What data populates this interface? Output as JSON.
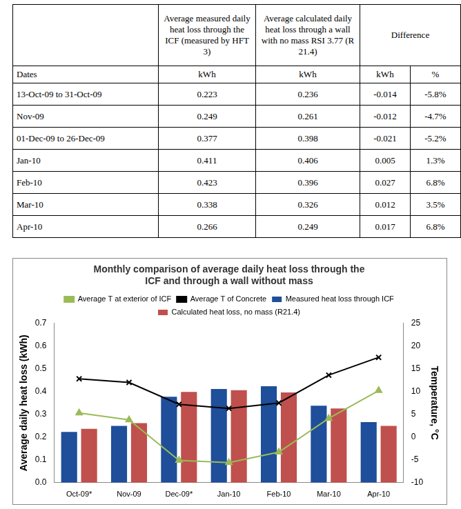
{
  "table": {
    "header": [
      [
        null,
        "Average measured daily heat loss through the ICF (measured by HFT 3)",
        "Average calculated daily heat loss through a wall with no mass RSI 3.77 (R 21.4)",
        "Difference"
      ],
      [
        "Dates",
        "kWh",
        "kWh",
        "kWh",
        "%"
      ]
    ],
    "rows": [
      [
        "13-Oct-09 to 31-Oct-09",
        "0.223",
        "0.236",
        "-0.014",
        "-5.8%"
      ],
      [
        "Nov-09",
        "0.249",
        "0.261",
        "-0.012",
        "-4.7%"
      ],
      [
        "01-Dec-09 to 26-Dec-09",
        "0.377",
        "0.398",
        "-0.021",
        "-5.2%"
      ],
      [
        "Jan-10",
        "0.411",
        "0.406",
        "0.005",
        "1.3%"
      ],
      [
        "Feb-10",
        "0.423",
        "0.396",
        "0.027",
        "6.8%"
      ],
      [
        "Mar-10",
        "0.338",
        "0.326",
        "0.012",
        "3.5%"
      ],
      [
        "Apr-10",
        "0.266",
        "0.249",
        "0.017",
        "6.8%"
      ]
    ]
  },
  "chart_data": {
    "type": "bar",
    "title": [
      "Monthly comparison of average daily heat loss through the",
      "ICF and through a wall without mass"
    ],
    "categories": [
      "Oct-09*",
      "Nov-09",
      "Dec-09*",
      "Jan-10",
      "Feb-10",
      "Mar-10",
      "Apr-10"
    ],
    "series": [
      {
        "name": "Measured heat loss through ICF",
        "type": "bar",
        "color": "#1f4e9a",
        "values": [
          0.223,
          0.249,
          0.377,
          0.411,
          0.423,
          0.338,
          0.266
        ]
      },
      {
        "name": "Calculated heat loss, no mass (R21.4)",
        "type": "bar",
        "color": "#c0504d",
        "values": [
          0.236,
          0.261,
          0.398,
          0.406,
          0.396,
          0.326,
          0.249
        ]
      },
      {
        "name": "Average T at exterior of ICF",
        "type": "line",
        "axis": "y2",
        "color": "#9bbb59",
        "marker": "triangle",
        "values": [
          5.3,
          3.8,
          -5.1,
          -5.6,
          -3.3,
          4.1,
          10.2
        ]
      },
      {
        "name": "Average T of Concrete",
        "type": "line",
        "axis": "y2",
        "color": "#000000",
        "marker": "x",
        "values": [
          12.8,
          12.0,
          7.2,
          6.3,
          7.5,
          13.6,
          17.5
        ]
      }
    ],
    "y_label": "Average daily heat loss (kWh)",
    "y2_label": "Temperature, °C",
    "ylim": [
      0,
      0.7
    ],
    "yticks": [
      {
        "value": 0,
        "label": "0.0"
      },
      0.1,
      0.2,
      0.3,
      0.4,
      0.5,
      0.6,
      0.7
    ],
    "y2lim": [
      -10,
      25
    ],
    "y2ticks": [
      -10,
      -5,
      0,
      5,
      10,
      15,
      20,
      25
    ],
    "grid": false,
    "legend": "top"
  }
}
